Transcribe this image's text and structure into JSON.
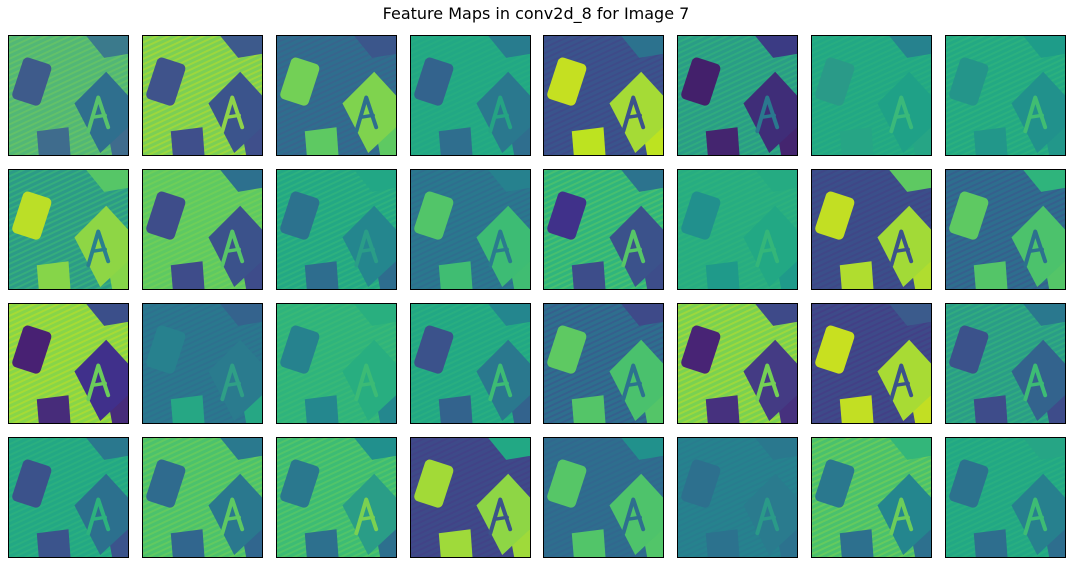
{
  "figure": {
    "title": "Feature Maps in conv2d_8 for Image 7"
  },
  "grid": {
    "rows": 4,
    "cols": 8,
    "image_description_note": "",
    "colormap": "viridis",
    "palette": {
      "dark": "#3b1c5a",
      "low": "#3e4a89",
      "mid": "#2a788e",
      "teal": "#22a884",
      "green": "#5ec962",
      "yellow": "#d8e219"
    }
  },
  "maps": [
    {
      "bg": "#52b776",
      "noise": "#6fc85f",
      "left_tile": "#3e5b8b",
      "a_tile": "#2f6f8e",
      "letter": "#58c26b",
      "bottom": "#3f6c8d",
      "top_right": "#3b7a8c"
    },
    {
      "bg": "#7ccf54",
      "noise": "#b6de2a",
      "left_tile": "#3f538b",
      "a_tile": "#3b548c",
      "letter": "#8fd34a",
      "bottom": "#3f4f8b",
      "top_right": "#3d5a8c"
    },
    {
      "bg": "#2f6e8e",
      "noise": "#3d5c8c",
      "left_tile": "#73d056",
      "a_tile": "#7fd34e",
      "letter": "#2e6e8e",
      "bottom": "#5ec962",
      "top_right": "#3b568b"
    },
    {
      "bg": "#22a884",
      "noise": "#28ae80",
      "left_tile": "#33638d",
      "a_tile": "#2a788e",
      "letter": "#25a383",
      "bottom": "#2f6e8e",
      "top_right": "#287c8e"
    },
    {
      "bg": "#3a548c",
      "noise": "#414487",
      "left_tile": "#c5e021",
      "a_tile": "#a5db36",
      "letter": "#3b528b",
      "bottom": "#bde320",
      "top_right": "#2c728e"
    },
    {
      "bg": "#2a9d86",
      "noise": "#33b67a",
      "left_tile": "#43206b",
      "a_tile": "#3f2d78",
      "letter": "#2a788e",
      "bottom": "#44256f",
      "top_right": "#3b3b84"
    },
    {
      "bg": "#22a884",
      "noise": "#2cb17e",
      "left_tile": "#2a9a88",
      "a_tile": "#1fa187",
      "letter": "#3ab97a",
      "bottom": "#26a585",
      "top_right": "#26828e"
    },
    {
      "bg": "#23a983",
      "noise": "#31b57b",
      "left_tile": "#24958a",
      "a_tile": "#21918c",
      "letter": "#40bd72",
      "bottom": "#22978a",
      "top_right": "#1e9c89"
    },
    {
      "bg": "#2c9b87",
      "noise": "#3cbc74",
      "left_tile": "#bbdf27",
      "a_tile": "#8ed645",
      "letter": "#2a7f8e",
      "bottom": "#86d549",
      "top_right": "#56c667"
    },
    {
      "bg": "#5ec962",
      "noise": "#7ad151",
      "left_tile": "#3e4d8a",
      "a_tile": "#3b528b",
      "letter": "#57c567",
      "bottom": "#3e4c8a",
      "top_right": "#2d708e"
    },
    {
      "bg": "#23a884",
      "noise": "#35b779",
      "left_tile": "#2c728e",
      "a_tile": "#24868e",
      "letter": "#2a9d87",
      "bottom": "#2e6d8e",
      "top_right": "#22a785"
    },
    {
      "bg": "#2a788e",
      "noise": "#31678e",
      "left_tile": "#52c569",
      "a_tile": "#3dbc74",
      "letter": "#2a7b8e",
      "bottom": "#40bd72",
      "top_right": "#26818e"
    },
    {
      "bg": "#30b57c",
      "noise": "#58c765",
      "left_tile": "#40318a",
      "a_tile": "#3b528b",
      "letter": "#56c667",
      "bottom": "#3d4d8a",
      "top_right": "#2c738e"
    },
    {
      "bg": "#27ad81",
      "noise": "#2fb47c",
      "left_tile": "#21908d",
      "a_tile": "#22a884",
      "letter": "#34b679",
      "bottom": "#1f9a8a",
      "top_right": "#25ab82"
    },
    {
      "bg": "#3b4f8a",
      "noise": "#423f85",
      "left_tile": "#c2df23",
      "a_tile": "#a2da37",
      "letter": "#3b528b",
      "bottom": "#b0dd2f",
      "top_right": "#5ec962"
    },
    {
      "bg": "#2e6e8e",
      "noise": "#3a548c",
      "left_tile": "#5ec962",
      "a_tile": "#4cc26c",
      "letter": "#2c718e",
      "bottom": "#54c568",
      "top_right": "#2fb47c"
    },
    {
      "bg": "#88d548",
      "noise": "#bddf26",
      "left_tile": "#482173",
      "a_tile": "#40308b",
      "letter": "#6ccd5a",
      "bottom": "#472c7a",
      "top_right": "#3b4f8a"
    },
    {
      "bg": "#2a788e",
      "noise": "#2f6c8e",
      "left_tile": "#27818e",
      "a_tile": "#2a7b8e",
      "letter": "#2f9f86",
      "bottom": "#26a784",
      "top_right": "#34638d"
    },
    {
      "bg": "#2fb47c",
      "noise": "#3dbc74",
      "left_tile": "#26828e",
      "a_tile": "#28ae80",
      "letter": "#3cbb75",
      "bottom": "#24878e",
      "top_right": "#29af7f"
    },
    {
      "bg": "#22a884",
      "noise": "#2db27d",
      "left_tile": "#3b528b",
      "a_tile": "#2a788e",
      "letter": "#3dbc74",
      "bottom": "#33638d",
      "top_right": "#24868e"
    },
    {
      "bg": "#2e6f8e",
      "noise": "#3a548c",
      "left_tile": "#5ec962",
      "a_tile": "#4ac16d",
      "letter": "#2c728e",
      "bottom": "#54c568",
      "top_right": "#3e4a89"
    },
    {
      "bg": "#7ad151",
      "noise": "#b5de2b",
      "left_tile": "#482475",
      "a_tile": "#443b84",
      "letter": "#75d054",
      "bottom": "#46317e",
      "top_right": "#3e4a89"
    },
    {
      "bg": "#3e4a89",
      "noise": "#453882",
      "left_tile": "#c8e020",
      "a_tile": "#a8db34",
      "letter": "#3b528b",
      "bottom": "#c2df23",
      "top_right": "#3b5b8c"
    },
    {
      "bg": "#2a9d87",
      "noise": "#34b679",
      "left_tile": "#3b528b",
      "a_tile": "#33638d",
      "letter": "#3dbc74",
      "bottom": "#3e4c8a",
      "top_right": "#2a788e"
    },
    {
      "bg": "#23a884",
      "noise": "#2fb47c",
      "left_tile": "#3b528b",
      "a_tile": "#2c708e",
      "letter": "#2db27d",
      "bottom": "#3b548c",
      "top_right": "#2a788e"
    },
    {
      "bg": "#4cc26c",
      "noise": "#73d056",
      "left_tile": "#2f6b8e",
      "a_tile": "#2a788e",
      "letter": "#5ec962",
      "bottom": "#31668e",
      "top_right": "#2a798e"
    },
    {
      "bg": "#3dbc74",
      "noise": "#5ec962",
      "left_tile": "#2a788e",
      "a_tile": "#2a9d87",
      "letter": "#7ad151",
      "bottom": "#2d708e",
      "top_right": "#21908d"
    },
    {
      "bg": "#3e4a89",
      "noise": "#433e85",
      "left_tile": "#a2da37",
      "a_tile": "#8ed645",
      "letter": "#3b528b",
      "bottom": "#9fda3a",
      "top_right": "#22a884"
    },
    {
      "bg": "#2e6e8e",
      "noise": "#33638d",
      "left_tile": "#56c667",
      "a_tile": "#4ec36b",
      "letter": "#2e6f8e",
      "bottom": "#52c569",
      "top_right": "#21918c"
    },
    {
      "bg": "#26828e",
      "noise": "#2a788e",
      "left_tile": "#2d708e",
      "a_tile": "#2a7b8e",
      "letter": "#2a9a88",
      "bottom": "#2c728e",
      "top_right": "#2a788e"
    },
    {
      "bg": "#4ac16d",
      "noise": "#7ad151",
      "left_tile": "#2a788e",
      "a_tile": "#24868e",
      "letter": "#6ccd5a",
      "bottom": "#2d708e",
      "top_right": "#33b67a"
    },
    {
      "bg": "#22a884",
      "noise": "#2db27d",
      "left_tile": "#2c728e",
      "a_tile": "#27808e",
      "letter": "#3dbc74",
      "bottom": "#2e6e8e",
      "top_right": "#26a585"
    }
  ]
}
